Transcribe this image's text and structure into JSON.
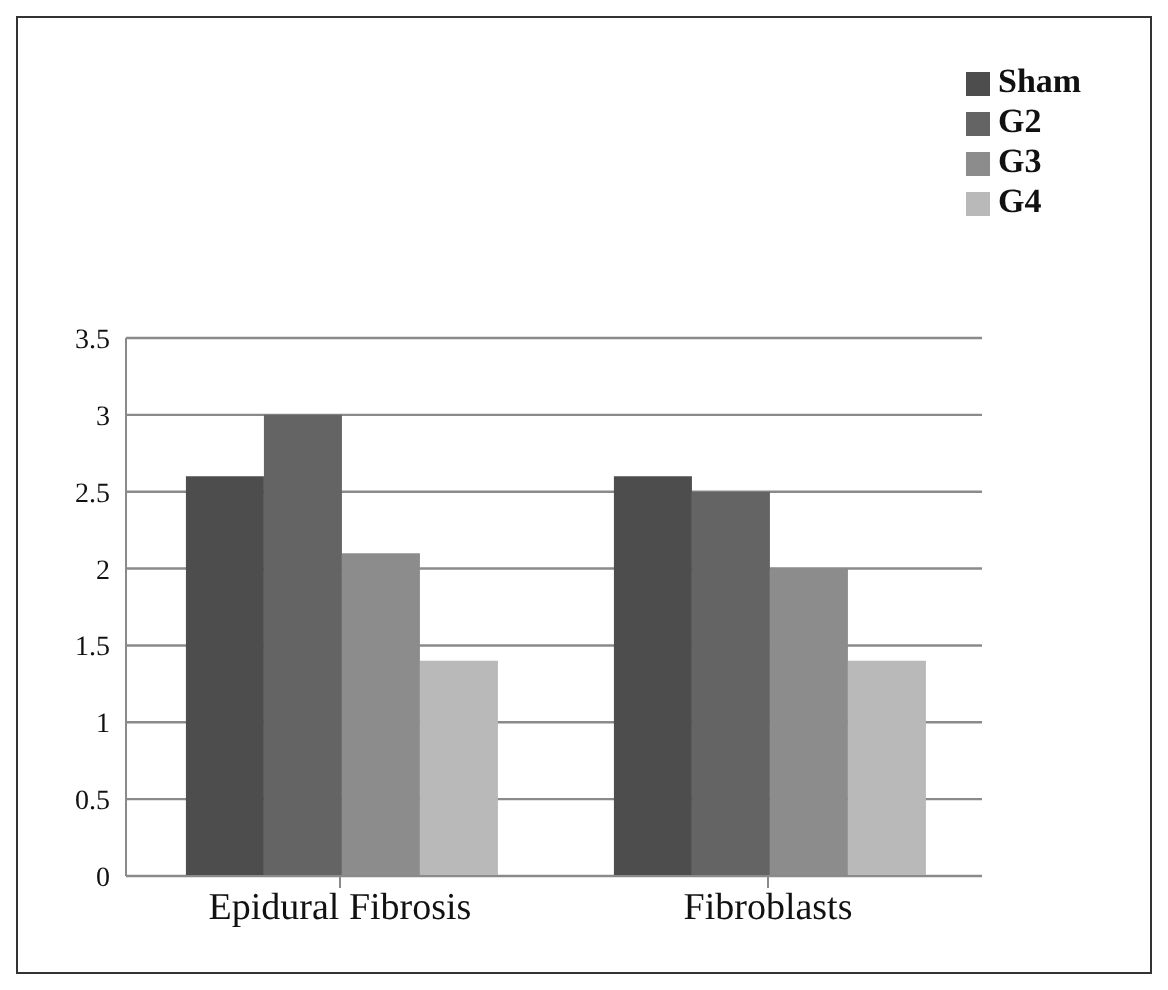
{
  "chart_data": {
    "type": "bar",
    "categories": [
      "Epidural Fibrosis",
      "Fibroblasts"
    ],
    "series": [
      {
        "name": "Sham",
        "color": "#4d4d4d",
        "values": [
          2.6,
          2.6
        ]
      },
      {
        "name": "G2",
        "color": "#646464",
        "values": [
          3.0,
          2.5
        ]
      },
      {
        "name": "G3",
        "color": "#8c8c8c",
        "values": [
          2.1,
          2.0
        ]
      },
      {
        "name": "G4",
        "color": "#b9b9b9",
        "values": [
          1.4,
          1.4
        ]
      }
    ],
    "ylim": [
      0,
      3.5
    ],
    "yticks": [
      0,
      0.5,
      1,
      1.5,
      2,
      2.5,
      3,
      3.5
    ],
    "grid": "y",
    "legend": "top right"
  }
}
